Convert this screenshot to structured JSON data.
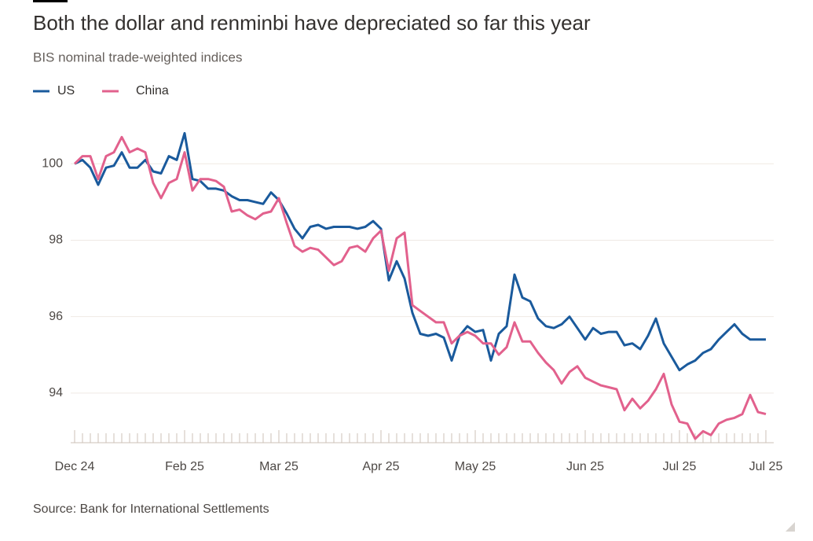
{
  "chart_data": {
    "type": "line",
    "title": "Both the dollar and renminbi have depreciated so far this year",
    "subtitle": "BIS nominal trade-weighted indices",
    "source": "Source: Bank for International Settlements",
    "categories": [
      "Dec 24",
      null,
      null,
      null,
      null,
      null,
      null,
      null,
      null,
      null,
      null,
      null,
      null,
      null,
      "Feb 25",
      null,
      null,
      null,
      null,
      null,
      null,
      null,
      null,
      null,
      null,
      null,
      "Mar 25",
      null,
      null,
      null,
      null,
      null,
      null,
      null,
      null,
      null,
      null,
      null,
      null,
      "Apr 25",
      null,
      null,
      null,
      null,
      null,
      null,
      null,
      null,
      null,
      null,
      null,
      "May 25",
      null,
      null,
      null,
      null,
      null,
      null,
      null,
      null,
      null,
      null,
      null,
      null,
      null,
      "Jun 25",
      null,
      null,
      null,
      null,
      null,
      null,
      null,
      null,
      null,
      null,
      null,
      "Jul 25",
      null,
      null,
      null,
      null,
      null,
      null,
      null,
      null,
      null,
      null,
      "Jul 25"
    ],
    "series": [
      {
        "name": "US",
        "color": "#1a5a9c",
        "values": [
          100.0,
          100.1,
          99.9,
          99.45,
          99.9,
          99.95,
          100.3,
          99.9,
          99.9,
          100.1,
          99.8,
          99.75,
          100.2,
          100.1,
          100.8,
          99.6,
          99.55,
          99.35,
          99.35,
          99.3,
          99.15,
          99.05,
          99.05,
          99.0,
          98.95,
          99.25,
          99.05,
          98.7,
          98.3,
          98.05,
          98.35,
          98.4,
          98.3,
          98.35,
          98.35,
          98.35,
          98.3,
          98.35,
          98.5,
          98.3,
          96.95,
          97.45,
          97.0,
          96.1,
          95.55,
          95.5,
          95.55,
          95.45,
          94.85,
          95.5,
          95.75,
          95.6,
          95.65,
          94.85,
          95.55,
          95.75,
          97.1,
          96.5,
          96.4,
          95.95,
          95.75,
          95.7,
          95.8,
          96.0,
          95.7,
          95.4,
          95.7,
          95.55,
          95.6,
          95.6,
          95.25,
          95.3,
          95.15,
          95.5,
          95.95,
          95.3,
          94.95,
          94.6,
          94.75,
          94.85,
          95.05,
          95.15,
          95.4,
          95.6,
          95.8,
          95.55,
          95.4,
          95.4,
          95.4
        ]
      },
      {
        "name": "China",
        "color": "#e2618d",
        "values": [
          100.0,
          100.2,
          100.2,
          99.6,
          100.2,
          100.3,
          100.7,
          100.3,
          100.4,
          100.3,
          99.5,
          99.1,
          99.5,
          99.6,
          100.3,
          99.3,
          99.6,
          99.6,
          99.55,
          99.4,
          98.75,
          98.8,
          98.65,
          98.55,
          98.7,
          98.75,
          99.1,
          98.45,
          97.85,
          97.7,
          97.8,
          97.75,
          97.55,
          97.35,
          97.45,
          97.8,
          97.85,
          97.7,
          98.05,
          98.25,
          97.2,
          98.05,
          98.2,
          96.3,
          96.15,
          96.0,
          95.85,
          95.85,
          95.3,
          95.5,
          95.6,
          95.5,
          95.3,
          95.3,
          95.0,
          95.2,
          95.85,
          95.35,
          95.35,
          95.05,
          94.8,
          94.6,
          94.25,
          94.55,
          94.7,
          94.4,
          94.3,
          94.2,
          94.15,
          94.1,
          93.55,
          93.85,
          93.6,
          93.8,
          94.1,
          94.5,
          93.7,
          93.25,
          93.2,
          92.8,
          93.0,
          92.9,
          93.2,
          93.3,
          93.35,
          93.45,
          93.95,
          93.5,
          93.45
        ]
      }
    ],
    "ylim": [
      92.7,
      101.2
    ],
    "yticks": [
      94,
      96,
      98,
      100
    ],
    "grid": true
  }
}
